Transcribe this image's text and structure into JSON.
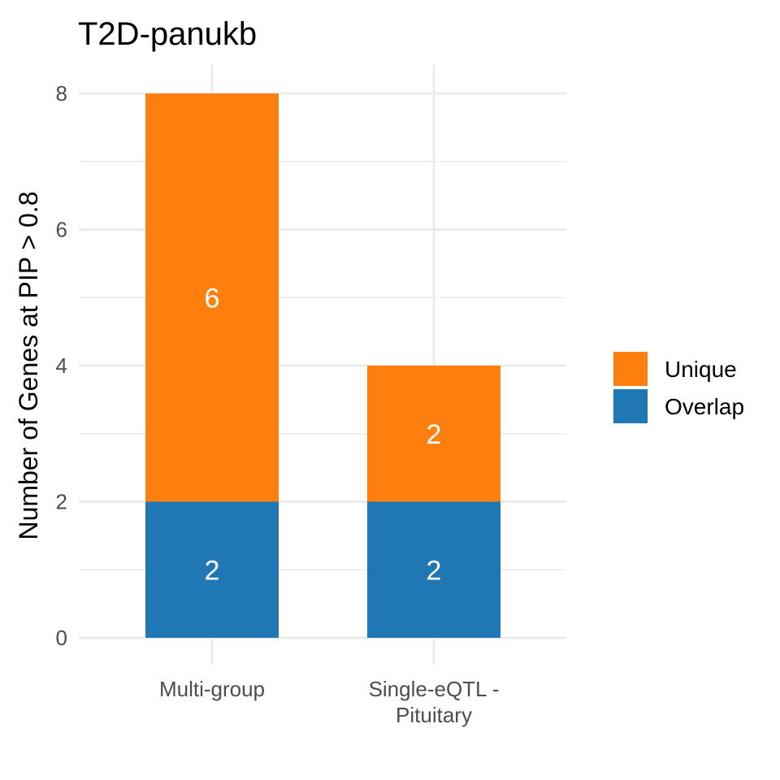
{
  "chart_data": {
    "type": "bar",
    "stacked": true,
    "title": "T2D-panukb",
    "xlabel": "",
    "ylabel": "Number of Genes at PIP > 0.8",
    "categories": [
      [
        "Multi-group"
      ],
      [
        "Single-eQTL -",
        "Pituitary"
      ]
    ],
    "series": [
      {
        "name": "Overlap",
        "color": "#1f77b4",
        "values": [
          2,
          2
        ]
      },
      {
        "name": "Unique",
        "color": "#ff7f0e",
        "values": [
          6,
          2
        ]
      }
    ],
    "legend_order": [
      "Unique",
      "Overlap"
    ],
    "legend_position": "right",
    "ylim": [
      0,
      8
    ],
    "yticks": [
      0,
      2,
      4,
      6,
      8
    ],
    "grid": true,
    "show_value_labels": true
  }
}
